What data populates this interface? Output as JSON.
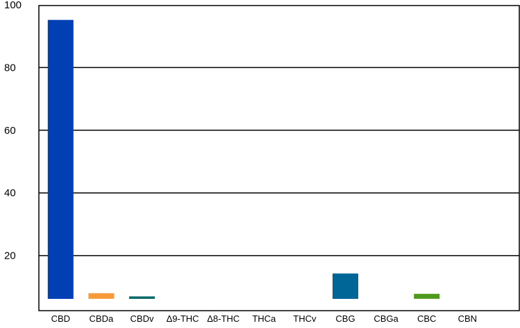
{
  "chart_data": {
    "type": "bar",
    "categories": [
      "CBD",
      "CBDa",
      "CBDv",
      "Δ9-THC",
      "Δ8-THC",
      "THCa",
      "THCv",
      "CBG",
      "CBGa",
      "CBC",
      "CBN"
    ],
    "values": [
      95.2,
      8.0,
      7.0,
      null,
      null,
      null,
      null,
      14.3,
      null,
      7.8,
      null
    ],
    "bar_baseline": 6.2,
    "colors": [
      "#0040b5",
      "#f79a3a",
      "#0d6b6a",
      null,
      null,
      null,
      null,
      "#006698",
      null,
      "#4f9a1d",
      null
    ],
    "yticks": [
      20,
      40,
      60,
      80,
      100
    ],
    "ylim": [
      0,
      100
    ],
    "grid": true,
    "title": "",
    "xlabel": "",
    "ylabel": ""
  }
}
